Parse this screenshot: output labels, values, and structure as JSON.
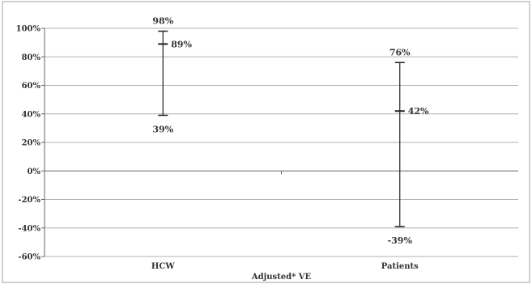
{
  "chart_data": {
    "type": "errorbar",
    "categories": [
      "HCW",
      "Patients"
    ],
    "series": [
      {
        "values": [
          {
            "point": 89,
            "upper": 98,
            "lower": 39
          },
          {
            "point": 42,
            "upper": 76,
            "lower": -39
          }
        ],
        "point_labels": [
          "89%",
          "42%"
        ],
        "upper_labels": [
          "98%",
          "76%"
        ],
        "lower_labels": [
          "39%",
          "-39%"
        ]
      }
    ],
    "title": "",
    "xlabel": "Adjusted* VE",
    "ylabel": "",
    "ylim": [
      -60,
      100
    ],
    "yticks": [
      100,
      80,
      60,
      40,
      20,
      0,
      -20,
      -40,
      -60
    ],
    "ytick_labels": [
      "100%",
      "80%",
      "60%",
      "40%",
      "20%",
      "0%",
      "-20%",
      "-40%",
      "-60%"
    ],
    "grid": true,
    "legend": "none",
    "colors": {
      "gridline": "#b0b0b0",
      "bar": "#222222",
      "border": "#a0a0a0",
      "text": "#333333"
    }
  }
}
